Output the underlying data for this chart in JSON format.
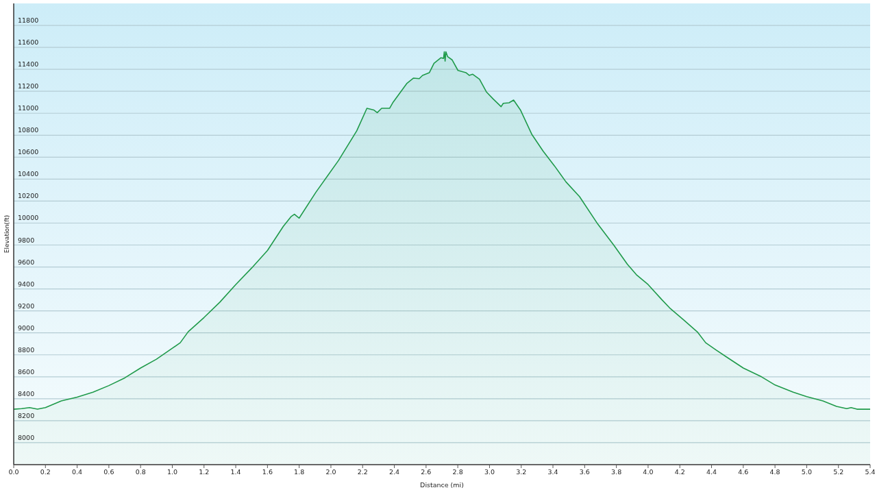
{
  "chart_data": {
    "type": "area",
    "xlabel": "Distance  (mi)",
    "ylabel": "Elevation(ft)",
    "x": [
      0,
      0.05,
      0.1,
      0.15,
      0.2,
      0.3,
      0.4,
      0.5,
      0.6,
      0.7,
      0.8,
      0.9,
      1.0,
      1.05,
      1.1,
      1.2,
      1.3,
      1.4,
      1.5,
      1.6,
      1.7,
      1.75,
      1.77,
      1.8,
      1.905,
      2.048,
      2.163,
      2.227,
      2.27,
      2.292,
      2.32,
      2.37,
      2.392,
      2.478,
      2.521,
      2.557,
      2.578,
      2.621,
      2.65,
      2.693,
      2.71,
      2.715,
      2.72,
      2.725,
      2.736,
      2.765,
      2.801,
      2.851,
      2.872,
      2.894,
      2.937,
      2.98,
      3.023,
      3.052,
      3.073,
      3.087,
      3.123,
      3.152,
      3.195,
      3.266,
      3.338,
      3.41,
      3.482,
      3.568,
      3.683,
      3.783,
      3.869,
      3.926,
      4.0,
      4.085,
      4.141,
      4.227,
      4.313,
      4.363,
      4.428,
      4.5,
      4.6,
      4.715,
      4.801,
      4.915,
      5.0,
      5.102,
      5.188,
      5.252,
      5.28,
      5.317,
      5.4
    ],
    "series": [
      {
        "color": "#1f9a4a",
        "values": [
          8305,
          8310,
          8320,
          8305,
          8320,
          8380,
          8415,
          8460,
          8520,
          8590,
          8680,
          8760,
          8860,
          8910,
          9010,
          9140,
          9280,
          9440,
          9590,
          9750,
          9970,
          10060,
          10080,
          10045,
          10280,
          10570,
          10840,
          11045,
          11030,
          11005,
          11045,
          11045,
          11100,
          11270,
          11320,
          11315,
          11345,
          11370,
          11455,
          11505,
          11500,
          11560,
          11475,
          11560,
          11515,
          11485,
          11390,
          11370,
          11345,
          11355,
          11310,
          11195,
          11130,
          11090,
          11060,
          11090,
          11095,
          11120,
          11030,
          10810,
          10655,
          10520,
          10375,
          10240,
          9990,
          9800,
          9625,
          9530,
          9440,
          9305,
          9220,
          9115,
          9005,
          8910,
          8845,
          8775,
          8680,
          8600,
          8525,
          8460,
          8420,
          8380,
          8330,
          8310,
          8320,
          8305,
          8305
        ]
      }
    ],
    "xlim": [
      0,
      5.4
    ],
    "xticks": [
      {
        "value": 0,
        "label": "0.0"
      },
      0.2,
      0.4,
      0.6,
      0.8,
      {
        "value": 1,
        "label": "1.0"
      },
      1.2,
      1.4,
      1.6,
      1.8,
      {
        "value": 2,
        "label": "2.0"
      },
      2.2,
      2.4,
      2.6,
      2.8,
      {
        "value": 3,
        "label": "3.0"
      },
      3.2,
      3.4,
      3.6,
      3.8,
      {
        "value": 4,
        "label": "4.0"
      },
      4.2,
      4.4,
      4.6,
      4.8,
      {
        "value": 5,
        "label": "5.0"
      },
      5.2,
      5.4
    ],
    "ylim": [
      7800,
      12000
    ],
    "yticks": [
      8000,
      8200,
      8400,
      8600,
      8800,
      9000,
      9200,
      9400,
      9600,
      9800,
      10000,
      10200,
      10400,
      10600,
      10800,
      11000,
      11200,
      11400,
      11600,
      11800
    ],
    "grid": "y"
  }
}
